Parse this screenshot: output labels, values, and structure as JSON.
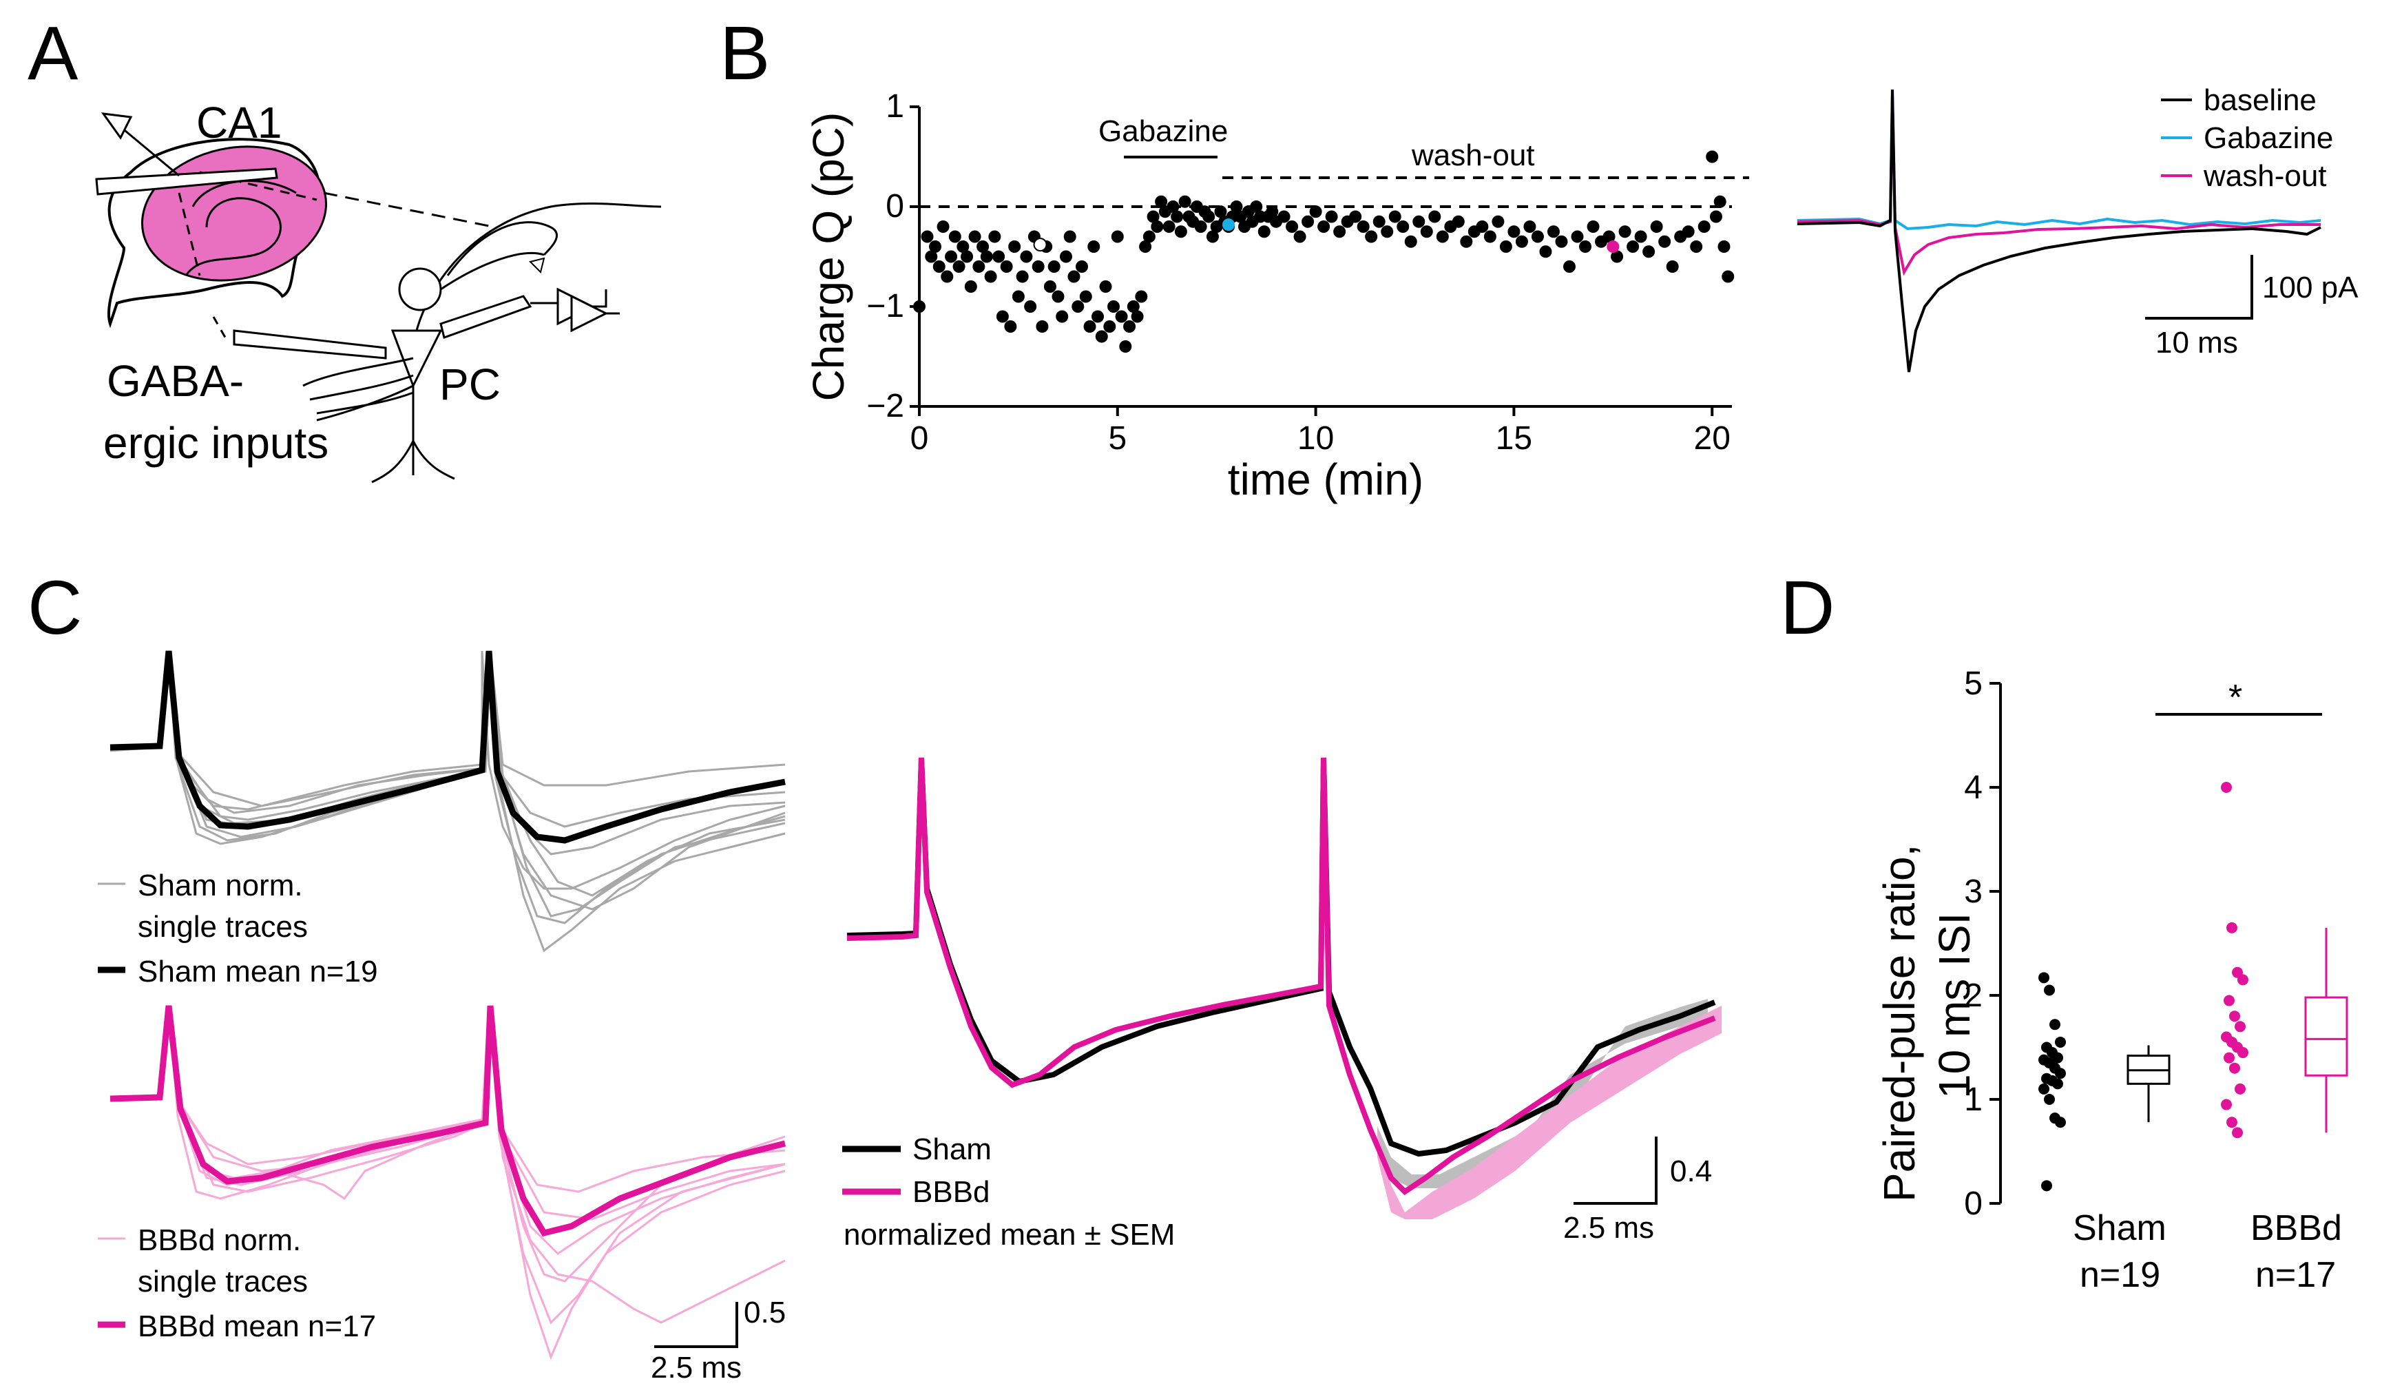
{
  "colors": {
    "black": "#000000",
    "pink": "#e0139a",
    "pink_light": "#f7a8d8",
    "pink_fill": "#e96fc0",
    "cyan": "#1aaee8",
    "gray": "#a8a8a8",
    "gray_fill": "#bdbdbd"
  },
  "panelA": {
    "letter": "A",
    "label_ca1": "CA1",
    "label_gaba1": "GABA-",
    "label_gaba2": "ergic inputs",
    "label_pc": "PC"
  },
  "panelB": {
    "letter": "B",
    "gabazine_label": "Gabazine",
    "washout_label": "wash-out",
    "scalebar_y": "100 pA",
    "scalebar_x": "10 ms"
  },
  "panelB_legend": [
    "baseline",
    "Gabazine",
    "wash-out"
  ],
  "panelC": {
    "letter": "C",
    "sham_single1": "Sham norm.",
    "sham_single2": "single traces",
    "sham_mean": "Sham mean n=19",
    "bbbd_single1": "BBBd norm.",
    "bbbd_single2": "single traces",
    "bbbd_mean": "BBBd mean n=17",
    "scale_left_y": "0.5",
    "scale_left_x": "2.5 ms",
    "legend_sham": "Sham",
    "legend_bbbd": "BBBd",
    "legend_note": "normalized mean ± SEM",
    "scale_right_y": "0.4",
    "scale_right_x": "2.5 ms"
  },
  "panelD": {
    "letter": "D",
    "ylabel1": "Paired-pulse ratio,",
    "ylabel2": "10 ms ISI",
    "sig": "*",
    "group1": "Sham",
    "n1": "n=19",
    "group2": "BBBd",
    "n2": "n=17"
  },
  "chart_data": [
    {
      "type": "scatter",
      "title": "",
      "xlabel": "time (min)",
      "ylabel": "Charge Q (pC)",
      "xlim": [
        0,
        20.5
      ],
      "ylim": [
        -2,
        1
      ],
      "xticks": [
        0,
        5,
        10,
        15,
        20
      ],
      "yticks": [
        -2,
        -1,
        0,
        1
      ],
      "xtick_labels": [
        "0",
        "5",
        "10",
        "15",
        "20"
      ],
      "ytick_labels": [
        "−2",
        "−1",
        "0",
        "1"
      ],
      "x": [
        0.0,
        0.2,
        0.3,
        0.4,
        0.5,
        0.6,
        0.7,
        0.8,
        0.9,
        1.0,
        1.1,
        1.2,
        1.3,
        1.4,
        1.5,
        1.6,
        1.7,
        1.8,
        1.9,
        2.0,
        2.1,
        2.2,
        2.3,
        2.4,
        2.5,
        2.6,
        2.7,
        2.8,
        2.9,
        3.0,
        3.1,
        3.2,
        3.3,
        3.4,
        3.5,
        3.6,
        3.7,
        3.8,
        3.9,
        4.0,
        4.1,
        4.2,
        4.3,
        4.4,
        4.5,
        4.6,
        4.7,
        4.8,
        4.9,
        5.0,
        5.1,
        5.2,
        5.3,
        5.4,
        5.5,
        5.6,
        5.7,
        5.8,
        5.9,
        6.0,
        6.1,
        6.2,
        6.3,
        6.4,
        6.5,
        6.6,
        6.7,
        6.8,
        6.9,
        7.0,
        7.1,
        7.2,
        7.3,
        7.4,
        7.5,
        7.6,
        7.7,
        7.8,
        7.9,
        8.0,
        8.1,
        8.2,
        8.3,
        8.4,
        8.5,
        8.6,
        8.7,
        8.8,
        8.9,
        9.0,
        9.2,
        9.4,
        9.6,
        9.8,
        10.0,
        10.2,
        10.4,
        10.6,
        10.8,
        11.0,
        11.2,
        11.4,
        11.6,
        11.8,
        12.0,
        12.2,
        12.4,
        12.6,
        12.8,
        13.0,
        13.2,
        13.4,
        13.6,
        13.8,
        14.0,
        14.2,
        14.4,
        14.6,
        14.8,
        15.0,
        15.2,
        15.4,
        15.6,
        15.8,
        16.0,
        16.2,
        16.4,
        16.6,
        16.8,
        17.0,
        17.2,
        17.4,
        17.6,
        17.8,
        18.0,
        18.2,
        18.4,
        18.6,
        18.8,
        19.0,
        19.2,
        19.4,
        19.6,
        19.8,
        20.0,
        20.1,
        20.2,
        20.3,
        20.4
      ],
      "y": [
        -1.0,
        -0.3,
        -0.5,
        -0.4,
        -0.6,
        -0.2,
        -0.7,
        -0.5,
        -0.3,
        -0.6,
        -0.4,
        -0.5,
        -0.8,
        -0.3,
        -0.6,
        -0.4,
        -0.5,
        -0.7,
        -0.3,
        -0.5,
        -1.1,
        -0.6,
        -1.2,
        -0.4,
        -0.9,
        -0.7,
        -0.5,
        -1.0,
        -0.3,
        -0.6,
        -1.2,
        -0.4,
        -0.8,
        -0.6,
        -0.9,
        -1.1,
        -0.5,
        -0.3,
        -0.7,
        -1.0,
        -0.6,
        -0.9,
        -1.2,
        -0.4,
        -1.1,
        -1.3,
        -0.8,
        -1.2,
        -1.0,
        -0.3,
        -1.1,
        -1.4,
        -1.2,
        -1.0,
        -1.1,
        -0.9,
        -0.4,
        -0.3,
        -0.1,
        -0.2,
        0.05,
        -0.05,
        -0.2,
        0.0,
        -0.1,
        -0.25,
        0.05,
        -0.1,
        -0.15,
        0.0,
        -0.2,
        -0.05,
        -0.1,
        -0.3,
        -0.2,
        -0.05,
        -0.15,
        -0.2,
        -0.1,
        0.0,
        -0.1,
        -0.2,
        -0.05,
        -0.15,
        0.0,
        -0.1,
        -0.25,
        -0.1,
        -0.05,
        -0.15,
        -0.1,
        -0.2,
        -0.3,
        -0.15,
        -0.05,
        -0.2,
        -0.1,
        -0.25,
        -0.15,
        -0.1,
        -0.2,
        -0.3,
        -0.15,
        -0.25,
        -0.1,
        -0.2,
        -0.35,
        -0.15,
        -0.25,
        -0.1,
        -0.3,
        -0.2,
        -0.15,
        -0.35,
        -0.25,
        -0.2,
        -0.3,
        -0.15,
        -0.4,
        -0.25,
        -0.35,
        -0.2,
        -0.3,
        -0.45,
        -0.25,
        -0.35,
        -0.6,
        -0.3,
        -0.4,
        -0.2,
        -0.35,
        -0.3,
        -0.5,
        -0.25,
        -0.4,
        -0.3,
        -0.45,
        -0.2,
        -0.35,
        -0.6,
        -0.3,
        -0.25,
        -0.4,
        -0.2,
        0.5,
        -0.1,
        0.05,
        -0.4,
        -0.7
      ],
      "highlight": [
        {
          "x": 7.8,
          "y": -0.18,
          "label": "Gabazine"
        },
        {
          "x": 17.5,
          "y": -0.4,
          "label": "wash-out"
        },
        {
          "x": 3.05,
          "y": -0.38,
          "label": "baseline"
        }
      ]
    },
    {
      "type": "box",
      "ylabel": "Paired-pulse ratio, 10 ms ISI",
      "ylim": [
        0,
        5
      ],
      "yticks": [
        0,
        1,
        2,
        3,
        4,
        5
      ],
      "ytick_labels": [
        "0",
        "1",
        "2",
        "3",
        "4",
        "5"
      ],
      "categories": [
        "Sham",
        "BBBd"
      ],
      "series": [
        {
          "name": "Sham",
          "n": 19,
          "points": [
            2.17,
            2.05,
            1.72,
            1.55,
            1.5,
            1.45,
            1.4,
            1.38,
            1.35,
            1.3,
            1.25,
            1.2,
            1.18,
            1.15,
            1.1,
            1.0,
            0.82,
            0.78,
            0.17
          ],
          "box": {
            "min": 0.78,
            "q1": 1.15,
            "median": 1.28,
            "q3": 1.42,
            "max": 1.52
          }
        },
        {
          "name": "BBBd",
          "n": 17,
          "points": [
            4.0,
            2.65,
            2.22,
            2.15,
            1.95,
            1.8,
            1.7,
            1.6,
            1.55,
            1.5,
            1.45,
            1.4,
            1.3,
            1.1,
            0.95,
            0.78,
            0.68
          ],
          "box": {
            "min": 0.68,
            "q1": 1.23,
            "median": 1.58,
            "q3": 1.98,
            "max": 2.65
          }
        }
      ],
      "significance": "*"
    }
  ]
}
